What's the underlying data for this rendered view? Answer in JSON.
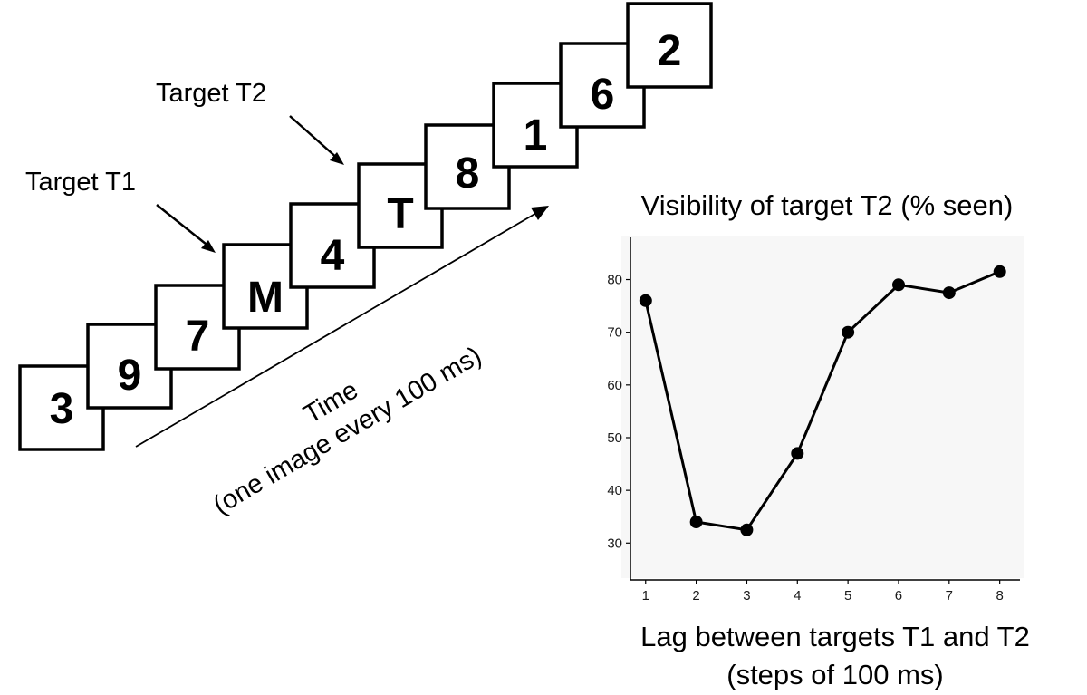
{
  "stream": {
    "frames": [
      "3",
      "9",
      "7",
      "M",
      "4",
      "T",
      "8",
      "1",
      "6",
      "2"
    ],
    "target_t1_label": "Target T1",
    "target_t2_label": "Target T2",
    "time_label": "Time",
    "time_sublabel": "(one image every 100 ms)"
  },
  "chart_data": {
    "type": "line",
    "title": "Visibility of target T2 (% seen)",
    "xlabel_line1": "Lag between targets T1 and T2",
    "xlabel_line2": "(steps of 100 ms)",
    "ylabel": "",
    "x": [
      1,
      2,
      3,
      4,
      5,
      6,
      7,
      8
    ],
    "values": [
      76,
      34,
      32.5,
      47,
      70,
      79,
      77.5,
      81.5
    ],
    "xlim": [
      0.7,
      8.4
    ],
    "ylim": [
      23,
      88
    ],
    "yticks": [
      30,
      40,
      50,
      60,
      70,
      80
    ],
    "xticks": [
      1,
      2,
      3,
      4,
      5,
      6,
      7,
      8
    ],
    "grid": false,
    "legend": "none"
  }
}
